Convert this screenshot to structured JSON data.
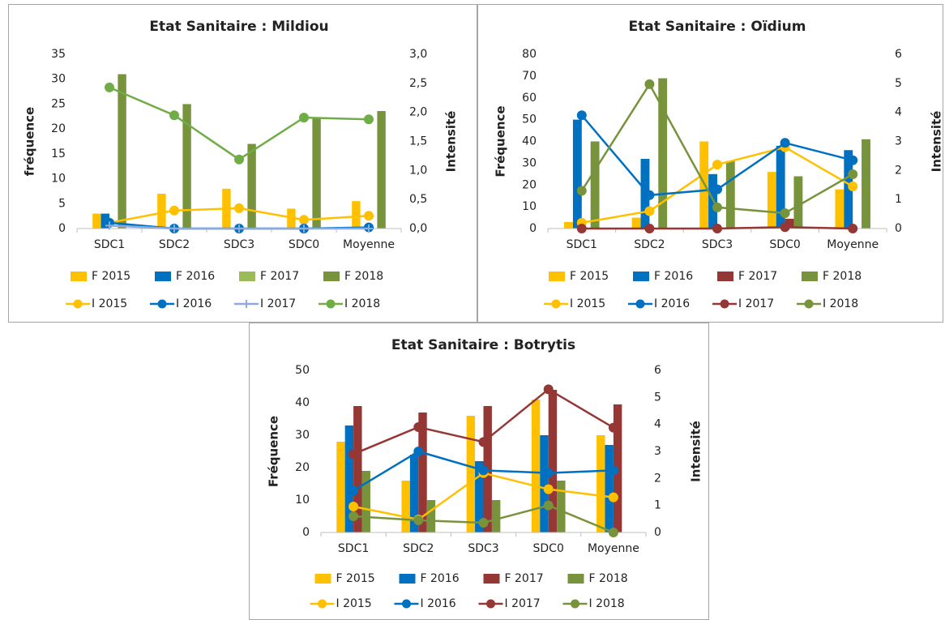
{
  "chart_data": [
    {
      "type": "combo",
      "title": "Etat Sanitaire : Mildiou",
      "y_label": "fréquence",
      "y2_label": "Intensité",
      "categories": [
        "SDC1",
        "SDC2",
        "SDC3",
        "SDC0",
        "Moyenne"
      ],
      "ylim": [
        0,
        35
      ],
      "yticks": [
        0,
        5,
        10,
        15,
        20,
        25,
        30,
        35
      ],
      "y2lim": [
        0,
        3
      ],
      "y2ticks": [
        {
          "value": 0,
          "label": "0,0"
        },
        {
          "value": 0.5,
          "label": "0,5"
        },
        {
          "value": 1,
          "label": "1,0"
        },
        {
          "value": 1.5,
          "label": "1,5"
        },
        {
          "value": 2,
          "label": "2,0"
        },
        {
          "value": 2.5,
          "label": "2,5"
        },
        {
          "value": 3,
          "label": "3,0"
        }
      ],
      "series": [
        {
          "name": "F 2015",
          "type": "bar",
          "color": "#ffc000",
          "values": [
            3,
            7,
            8,
            4,
            5.5
          ]
        },
        {
          "name": "F 2016",
          "type": "bar",
          "color": "#0070c0",
          "values": [
            3,
            0,
            0,
            0,
            0
          ]
        },
        {
          "name": "F 2017",
          "type": "bar",
          "color": "#9bbb59",
          "values": [
            0,
            0,
            0,
            0,
            0
          ]
        },
        {
          "name": "F 2018",
          "type": "bar",
          "color": "#77933c",
          "values": [
            31,
            25,
            17,
            22.3,
            23.6
          ]
        },
        {
          "name": "I 2015",
          "type": "line",
          "axis": "y2",
          "color": "#ffc000",
          "marker": "circle",
          "values": [
            0.1,
            0.31,
            0.35,
            0.15,
            0.22
          ]
        },
        {
          "name": "I 2016",
          "type": "line",
          "axis": "y2",
          "color": "#0070c0",
          "marker": "circle",
          "values": [
            0.1,
            0,
            0,
            0,
            0.02
          ]
        },
        {
          "name": "I 2017",
          "type": "line",
          "axis": "y2",
          "color": "#8eaadb",
          "marker": "plus",
          "values": [
            0.05,
            0,
            0,
            0,
            0
          ]
        },
        {
          "name": "I 2018",
          "type": "line",
          "axis": "y2",
          "color": "#70ad47",
          "marker": "circle",
          "values": [
            2.43,
            1.95,
            1.19,
            1.91,
            1.88
          ]
        }
      ]
    },
    {
      "type": "combo",
      "title": "Etat Sanitaire : Oïdium",
      "y_label": "Fréquence",
      "y2_label": "Intensité",
      "categories": [
        "SDC1",
        "SDC2",
        "SDC3",
        "SDC0",
        "Moyenne"
      ],
      "ylim": [
        0,
        80
      ],
      "yticks": [
        0,
        10,
        20,
        30,
        40,
        50,
        60,
        70,
        80
      ],
      "y2lim": [
        0,
        6
      ],
      "y2ticks": [
        0,
        1,
        2,
        3,
        4,
        5,
        6
      ],
      "series": [
        {
          "name": "F 2015",
          "type": "bar",
          "color": "#ffc000",
          "values": [
            3,
            5,
            40,
            26,
            18
          ]
        },
        {
          "name": "F 2016",
          "type": "bar",
          "color": "#0070c0",
          "values": [
            50,
            32,
            25,
            38,
            36
          ]
        },
        {
          "name": "F 2017",
          "type": "bar",
          "color": "#953735",
          "values": [
            0,
            0,
            0,
            4.5,
            0
          ]
        },
        {
          "name": "F 2018",
          "type": "bar",
          "color": "#77933c",
          "values": [
            40,
            69,
            31,
            24,
            41
          ]
        },
        {
          "name": "I 2015",
          "type": "line",
          "axis": "y2",
          "color": "#ffc000",
          "marker": "circle",
          "values": [
            0.2,
            0.6,
            2.2,
            2.8,
            1.45
          ]
        },
        {
          "name": "I 2016",
          "type": "line",
          "axis": "y2",
          "color": "#0070c0",
          "marker": "circle",
          "values": [
            3.9,
            1.15,
            1.35,
            2.95,
            2.35
          ]
        },
        {
          "name": "I 2017",
          "type": "line",
          "axis": "y2",
          "color": "#953735",
          "marker": "circle",
          "values": [
            0,
            0,
            0,
            0.05,
            0
          ]
        },
        {
          "name": "I 2018",
          "type": "line",
          "axis": "y2",
          "color": "#77933c",
          "marker": "circle",
          "values": [
            1.3,
            4.97,
            0.73,
            0.53,
            1.87
          ]
        }
      ]
    },
    {
      "type": "combo",
      "title": "Etat Sanitaire : Botrytis",
      "y_label": "Fréquence",
      "y2_label": "Intensité",
      "categories": [
        "SDC1",
        "SDC2",
        "SDC3",
        "SDC0",
        "Moyenne"
      ],
      "ylim": [
        0,
        50
      ],
      "yticks": [
        0,
        10,
        20,
        30,
        40,
        50
      ],
      "y2lim": [
        0,
        6
      ],
      "y2ticks": [
        0,
        1,
        2,
        3,
        4,
        5,
        6
      ],
      "series": [
        {
          "name": "F 2015",
          "type": "bar",
          "color": "#ffc000",
          "values": [
            28,
            16,
            36,
            41,
            30
          ]
        },
        {
          "name": "F 2016",
          "type": "bar",
          "color": "#0070c0",
          "values": [
            33,
            24,
            22,
            30,
            27
          ]
        },
        {
          "name": "F 2017",
          "type": "bar",
          "color": "#953735",
          "values": [
            39,
            37,
            39,
            44,
            39.5
          ]
        },
        {
          "name": "F 2018",
          "type": "bar",
          "color": "#77933c",
          "values": [
            19,
            10,
            10,
            16,
            0
          ]
        },
        {
          "name": "I 2015",
          "type": "line",
          "axis": "y2",
          "color": "#ffc000",
          "marker": "circle",
          "values": [
            0.96,
            0.48,
            2.2,
            1.6,
            1.3
          ]
        },
        {
          "name": "I 2016",
          "type": "line",
          "axis": "y2",
          "color": "#0070c0",
          "marker": "circle",
          "values": [
            1.55,
            3.0,
            2.3,
            2.2,
            2.3
          ]
        },
        {
          "name": "I 2017",
          "type": "line",
          "axis": "y2",
          "color": "#953735",
          "marker": "circle",
          "values": [
            2.9,
            3.9,
            3.35,
            5.3,
            3.88
          ]
        },
        {
          "name": "I 2018",
          "type": "line",
          "axis": "y2",
          "color": "#77933c",
          "marker": "circle",
          "values": [
            0.6,
            0.45,
            0.36,
            1.0,
            0
          ]
        }
      ]
    }
  ]
}
